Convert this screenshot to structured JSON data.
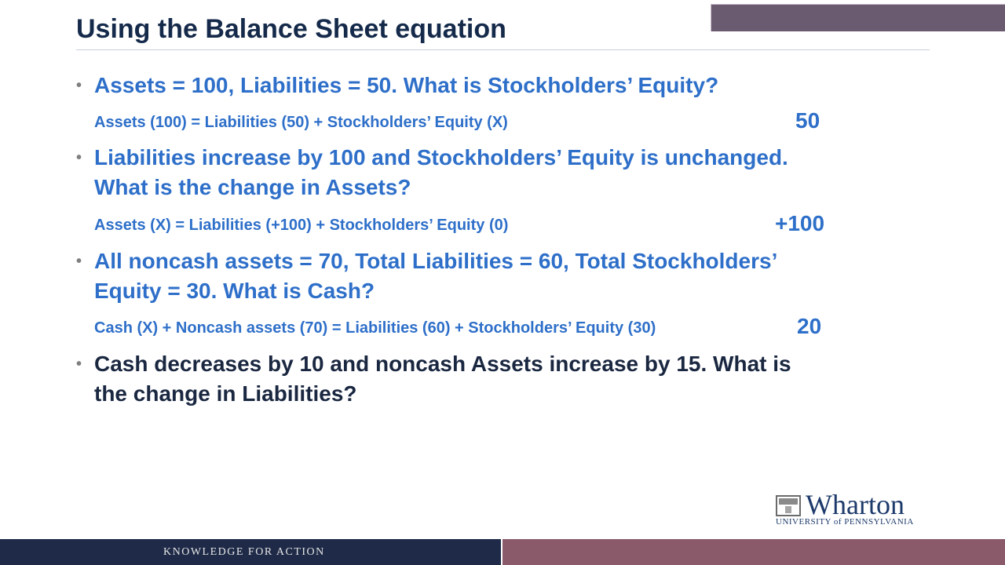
{
  "slide": {
    "title": "Using the Balance Sheet equation",
    "bullets": [
      {
        "lines": [
          "Assets = 100, Liabilities = 50.  What is Stockholders’ Equity?"
        ],
        "work": "Assets (100) = Liabilities (50) + Stockholders’ Equity (X)",
        "answer": "50"
      },
      {
        "lines": [
          "Liabilities increase by 100 and Stockholders’ Equity is unchanged.",
          "What is the change in Assets?"
        ],
        "work": "Assets (X) = Liabilities (+100) + Stockholders’ Equity (0)",
        "answer": "+100"
      },
      {
        "lines": [
          "All noncash assets = 70, Total Liabilities = 60, Total Stockholders’",
          "Equity = 30.  What is Cash?"
        ],
        "work": "Cash (X) + Noncash assets (70) = Liabilities (60) + Stockholders’ Equity (30)",
        "answer": "20"
      },
      {
        "lines": [
          "Cash decreases by 10 and noncash Assets increase by 15.  What is",
          "the change in Liabilities?"
        ]
      }
    ],
    "bullet_glyph": "•"
  },
  "logo": {
    "name": "Wharton",
    "subtitle": "UNIVERSITY of PENNSYLVANIA"
  },
  "footer": {
    "tagline": "KNOWLEDGE FOR ACTION"
  },
  "colors": {
    "accent_blue": "#2e6fc9",
    "title_navy": "#152a4a",
    "footer_navy": "#1e2a47",
    "footer_plum": "#8a5a6a"
  }
}
